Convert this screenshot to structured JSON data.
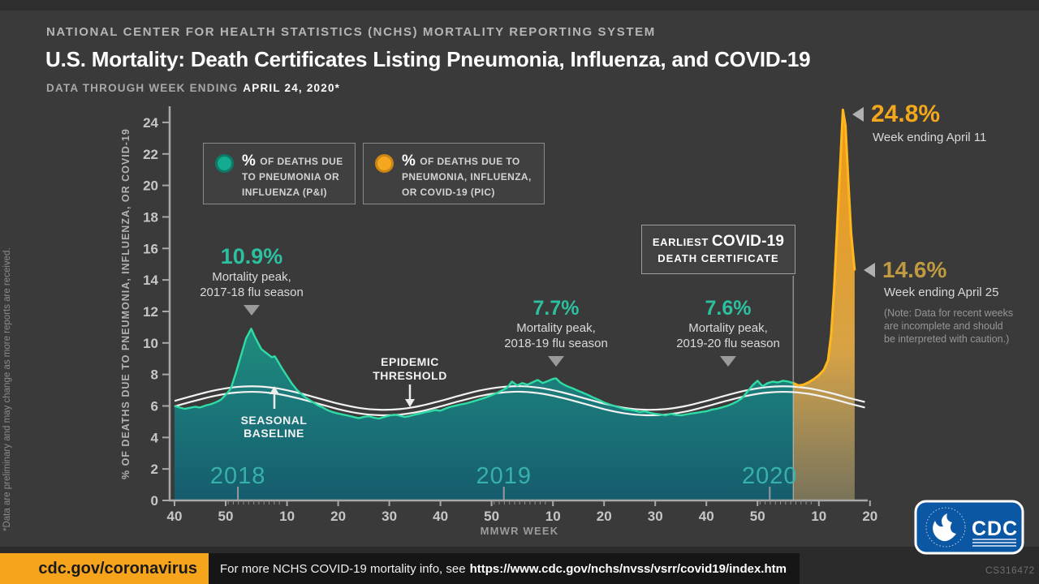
{
  "colors": {
    "background": "#3a3a3a",
    "teal_line": "#2fdca6",
    "teal_fill_top": "#1f8e7d",
    "teal_fill_mid": "#1a7378",
    "teal_fill_bottom": "#155c6d",
    "orange_line": "#ffb71c",
    "orange_fill_top": "#f79c12",
    "orange_fill_mid": "#e9ae45",
    "orange_fill_bottom": "#c9b97e",
    "white_curve": "#f2f2f2",
    "axis": "#a8a8a8",
    "tick_label": "#c6c6c6",
    "teal_accent": "#2cbfa0",
    "gold_accent": "#f2a71c",
    "muted_gold": "#c09a40",
    "year_label": "#3ab8ae",
    "footer_orange": "#f7a41d",
    "cdc_blue": "#0b57a4"
  },
  "header": {
    "kicker": "NATIONAL CENTER FOR HEALTH STATISTICS (NCHS) MORTALITY REPORTING SYSTEM",
    "title": "U.S. Mortality: Death Certificates Listing Pneumonia, Influenza, and COVID-19",
    "subtitle_prefix": "DATA THROUGH WEEK ENDING",
    "subtitle_date": "APRIL 24, 2020*"
  },
  "legend": {
    "pi": {
      "pct": "%",
      "line1": "OF DEATHS DUE",
      "line2": "TO PNEUMONIA OR",
      "line3": "INFLUENZA (P&I)"
    },
    "pic": {
      "pct": "%",
      "line1": "OF DEATHS DUE TO",
      "line2": "PNEUMONIA, INFLUENZA,",
      "line3": "OR COVID-19 (PIC)"
    }
  },
  "annotations": {
    "peak2018": {
      "value": "10.9%",
      "line1": "Mortality peak,",
      "line2": "2017-18 flu season"
    },
    "peak2019": {
      "value": "7.7%",
      "line1": "Mortality peak,",
      "line2": "2018-19 flu season"
    },
    "peak2020": {
      "value": "7.6%",
      "line1": "Mortality peak,",
      "line2": "2019-20 flu season"
    },
    "epidemic_threshold": {
      "line1": "EPIDEMIC",
      "line2": "THRESHOLD"
    },
    "seasonal_baseline": {
      "line1": "SEASONAL",
      "line2": "BASELINE"
    },
    "earliest_covid": {
      "prefix": "EARLIEST",
      "big": "COVID-19",
      "line2": "DEATH CERTIFICATE"
    },
    "pic_peak": {
      "value": "24.8%",
      "caption": "Week ending April 11"
    },
    "pic_latest": {
      "value": "14.6%",
      "caption": "Week ending April 25",
      "note1": "(Note: Data for recent weeks",
      "note2": "are incomplete and should",
      "note3": "be interpreted with caution.)"
    }
  },
  "footnote_vertical": "*Data are preliminary and may change as more reports are received.",
  "footer": {
    "cdc_url": "cdc.gov/coronavirus",
    "info_prefix": "For more NCHS COVID-19 mortality info, see",
    "info_url": "https://www.cdc.gov/nchs/nvss/vsrr/covid19/index.htm",
    "doc_id": "CS316472",
    "logo_text": "CDC"
  },
  "chart_data": {
    "type": "area",
    "title": "U.S. Mortality: Death Certificates Listing Pneumonia, Influenza, and COVID-19",
    "xlabel": "MMWR WEEK",
    "ylabel": "% OF DEATHS DUE TO PNEUMONIA, INFLUENZA, OR COVID-19",
    "ylim": [
      0,
      25
    ],
    "x_unit": "weeks elapsed since MMWR week 40 of 2017",
    "yticks": [
      0,
      2,
      4,
      6,
      8,
      10,
      12,
      14,
      16,
      18,
      20,
      22,
      24
    ],
    "xticks": [
      {
        "t": 0,
        "label": "40"
      },
      {
        "t": 10,
        "label": "50"
      },
      {
        "t": 22,
        "label": "10"
      },
      {
        "t": 32,
        "label": "20"
      },
      {
        "t": 42,
        "label": "30"
      },
      {
        "t": 52,
        "label": "40"
      },
      {
        "t": 62,
        "label": "50"
      },
      {
        "t": 74,
        "label": "10"
      },
      {
        "t": 84,
        "label": "20"
      },
      {
        "t": 94,
        "label": "30"
      },
      {
        "t": 104,
        "label": "40"
      },
      {
        "t": 114,
        "label": "50"
      },
      {
        "t": 126,
        "label": "10"
      },
      {
        "t": 136,
        "label": "20"
      }
    ],
    "minor_tick_ranges": [
      [
        10.5,
        21
      ],
      [
        62.5,
        73
      ],
      [
        114.5,
        125
      ]
    ],
    "year_labels": [
      {
        "t": 12.4,
        "label": "2018"
      },
      {
        "t": 64.4,
        "label": "2019"
      },
      {
        "t": 116.4,
        "label": "2020"
      }
    ],
    "covid_line_t": 121,
    "key_values": {
      "pi_peaks": [
        {
          "season": "2017-18",
          "value": 10.9
        },
        {
          "season": "2018-19",
          "value": 7.7
        },
        {
          "season": "2019-20",
          "value": 7.6
        }
      ],
      "pic_peak": {
        "value": 24.8,
        "week_ending": "April 11"
      },
      "pic_latest": {
        "value": 14.6,
        "week_ending": "April 25"
      }
    },
    "series": [
      {
        "name": "% of deaths due to pneumonia or influenza (P&I)",
        "role": "pi",
        "smooth": false,
        "points": [
          [
            0,
            6.0
          ],
          [
            1,
            5.9
          ],
          [
            2,
            5.82
          ],
          [
            3,
            5.88
          ],
          [
            4,
            5.95
          ],
          [
            5,
            5.9
          ],
          [
            6,
            6.02
          ],
          [
            7,
            6.1
          ],
          [
            8,
            6.22
          ],
          [
            9,
            6.38
          ],
          [
            10,
            6.7
          ],
          [
            11,
            7.1
          ],
          [
            12,
            8.1
          ],
          [
            13,
            9.2
          ],
          [
            14,
            10.3
          ],
          [
            15,
            10.9
          ],
          [
            15.7,
            10.4
          ],
          [
            16.5,
            9.9
          ],
          [
            17,
            9.6
          ],
          [
            18,
            9.35
          ],
          [
            19,
            9.1
          ],
          [
            19.6,
            9.15
          ],
          [
            20,
            8.95
          ],
          [
            21,
            8.4
          ],
          [
            22,
            7.9
          ],
          [
            23,
            7.4
          ],
          [
            24,
            7.0
          ],
          [
            25,
            6.7
          ],
          [
            26,
            6.45
          ],
          [
            27,
            6.25
          ],
          [
            28,
            6.05
          ],
          [
            29,
            5.9
          ],
          [
            30,
            5.72
          ],
          [
            31,
            5.6
          ],
          [
            32,
            5.52
          ],
          [
            33,
            5.45
          ],
          [
            34,
            5.38
          ],
          [
            35,
            5.3
          ],
          [
            36,
            5.22
          ],
          [
            37,
            5.3
          ],
          [
            38,
            5.35
          ],
          [
            39,
            5.25
          ],
          [
            40,
            5.2
          ],
          [
            41,
            5.3
          ],
          [
            42,
            5.38
          ],
          [
            43,
            5.45
          ],
          [
            44,
            5.38
          ],
          [
            45,
            5.3
          ],
          [
            46,
            5.36
          ],
          [
            47,
            5.45
          ],
          [
            48,
            5.52
          ],
          [
            49,
            5.6
          ],
          [
            50,
            5.66
          ],
          [
            51,
            5.74
          ],
          [
            52,
            5.7
          ],
          [
            53,
            5.84
          ],
          [
            54,
            5.95
          ],
          [
            55,
            6.02
          ],
          [
            56,
            6.1
          ],
          [
            57,
            6.16
          ],
          [
            58,
            6.25
          ],
          [
            59,
            6.35
          ],
          [
            60,
            6.45
          ],
          [
            61,
            6.55
          ],
          [
            62,
            6.68
          ],
          [
            63,
            6.82
          ],
          [
            64,
            6.98
          ],
          [
            65,
            7.15
          ],
          [
            66,
            7.55
          ],
          [
            67,
            7.3
          ],
          [
            68,
            7.45
          ],
          [
            69,
            7.35
          ],
          [
            70,
            7.5
          ],
          [
            71,
            7.65
          ],
          [
            72,
            7.45
          ],
          [
            73,
            7.58
          ],
          [
            74,
            7.72
          ],
          [
            74.6,
            7.75
          ],
          [
            75.4,
            7.5
          ],
          [
            76,
            7.38
          ],
          [
            77,
            7.22
          ],
          [
            78,
            7.1
          ],
          [
            79,
            6.95
          ],
          [
            80,
            6.82
          ],
          [
            81,
            6.68
          ],
          [
            82,
            6.52
          ],
          [
            83,
            6.38
          ],
          [
            84,
            6.22
          ],
          [
            85,
            6.1
          ],
          [
            86,
            6.0
          ],
          [
            87,
            5.9
          ],
          [
            88,
            5.8
          ],
          [
            89,
            5.76
          ],
          [
            90,
            5.7
          ],
          [
            91,
            5.62
          ],
          [
            92,
            5.66
          ],
          [
            93,
            5.56
          ],
          [
            94,
            5.5
          ],
          [
            95,
            5.46
          ],
          [
            96,
            5.4
          ],
          [
            97,
            5.5
          ],
          [
            98,
            5.44
          ],
          [
            99,
            5.4
          ],
          [
            100,
            5.46
          ],
          [
            101,
            5.52
          ],
          [
            102,
            5.56
          ],
          [
            103,
            5.62
          ],
          [
            104,
            5.66
          ],
          [
            105,
            5.76
          ],
          [
            106,
            5.82
          ],
          [
            107,
            5.9
          ],
          [
            108,
            6.0
          ],
          [
            109,
            6.12
          ],
          [
            110,
            6.28
          ],
          [
            111,
            6.5
          ],
          [
            112,
            6.9
          ],
          [
            113,
            7.3
          ],
          [
            114,
            7.6
          ],
          [
            115,
            7.25
          ],
          [
            116,
            7.45
          ],
          [
            117,
            7.55
          ],
          [
            118,
            7.5
          ],
          [
            119,
            7.6
          ],
          [
            120,
            7.55
          ],
          [
            121,
            7.45
          ]
        ]
      },
      {
        "name": "% of deaths due to pneumonia, influenza, or COVID-19 (PIC)",
        "role": "pic",
        "smooth": false,
        "points": [
          [
            121,
            7.45
          ],
          [
            122,
            7.3
          ],
          [
            123,
            7.35
          ],
          [
            124,
            7.5
          ],
          [
            125,
            7.7
          ],
          [
            126,
            7.95
          ],
          [
            127,
            8.3
          ],
          [
            127.8,
            8.9
          ],
          [
            128.4,
            10.5
          ],
          [
            129,
            13.5
          ],
          [
            129.6,
            17.5
          ],
          [
            130.2,
            21.5
          ],
          [
            130.7,
            24.8
          ],
          [
            131.2,
            23.8
          ],
          [
            131.8,
            20.0
          ],
          [
            132.3,
            17.0
          ],
          [
            133,
            14.6
          ]
        ]
      },
      {
        "name": "Seasonal baseline",
        "role": "baseline",
        "smooth": true,
        "points": [
          [
            0,
            5.97
          ],
          [
            4,
            6.33
          ],
          [
            8,
            6.65
          ],
          [
            12,
            6.85
          ],
          [
            16,
            6.89
          ],
          [
            20,
            6.77
          ],
          [
            24,
            6.5
          ],
          [
            28,
            6.15
          ],
          [
            32,
            5.8
          ],
          [
            36,
            5.53
          ],
          [
            40,
            5.41
          ],
          [
            44,
            5.45
          ],
          [
            48,
            5.65
          ],
          [
            52,
            5.97
          ],
          [
            56,
            6.33
          ],
          [
            60,
            6.65
          ],
          [
            64,
            6.85
          ],
          [
            68,
            6.9
          ],
          [
            72,
            6.77
          ],
          [
            76,
            6.5
          ],
          [
            80,
            6.15
          ],
          [
            84,
            5.8
          ],
          [
            88,
            5.53
          ],
          [
            92,
            5.41
          ],
          [
            96,
            5.45
          ],
          [
            100,
            5.65
          ],
          [
            104,
            5.97
          ],
          [
            108,
            6.33
          ],
          [
            112,
            6.65
          ],
          [
            116,
            6.85
          ],
          [
            120,
            6.89
          ],
          [
            124,
            6.77
          ],
          [
            128,
            6.5
          ],
          [
            132,
            6.15
          ],
          [
            135,
            5.9
          ]
        ]
      },
      {
        "name": "Epidemic threshold",
        "role": "threshold",
        "smooth": true,
        "points": [
          [
            0,
            6.32
          ],
          [
            4,
            6.68
          ],
          [
            8,
            7.0
          ],
          [
            12,
            7.2
          ],
          [
            16,
            7.24
          ],
          [
            20,
            7.12
          ],
          [
            24,
            6.85
          ],
          [
            28,
            6.5
          ],
          [
            32,
            6.15
          ],
          [
            36,
            5.88
          ],
          [
            40,
            5.76
          ],
          [
            44,
            5.8
          ],
          [
            48,
            6.0
          ],
          [
            52,
            6.32
          ],
          [
            56,
            6.68
          ],
          [
            60,
            7.0
          ],
          [
            64,
            7.2
          ],
          [
            68,
            7.25
          ],
          [
            72,
            7.12
          ],
          [
            76,
            6.85
          ],
          [
            80,
            6.5
          ],
          [
            84,
            6.15
          ],
          [
            88,
            5.88
          ],
          [
            92,
            5.76
          ],
          [
            96,
            5.8
          ],
          [
            100,
            6.0
          ],
          [
            104,
            6.32
          ],
          [
            108,
            6.68
          ],
          [
            112,
            7.0
          ],
          [
            116,
            7.2
          ],
          [
            120,
            7.24
          ],
          [
            124,
            7.12
          ],
          [
            128,
            6.85
          ],
          [
            132,
            6.5
          ],
          [
            135,
            6.25
          ]
        ]
      }
    ]
  }
}
